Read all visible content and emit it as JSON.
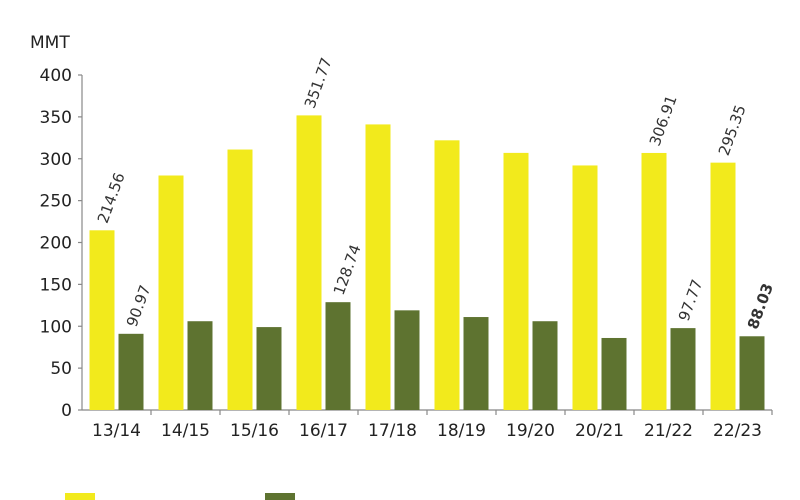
{
  "chart_data": {
    "type": "bar",
    "y_label": "MMT",
    "categories": [
      "13/14",
      "14/15",
      "15/16",
      "16/17",
      "17/18",
      "18/19",
      "19/20",
      "20/21",
      "21/22",
      "22/23"
    ],
    "series": [
      {
        "color": "#f2ea1c",
        "values": [
          214.56,
          280,
          311,
          351.77,
          341,
          322,
          307,
          292,
          306.91,
          295.35
        ],
        "value_labels": [
          "214.56",
          null,
          null,
          "351.77",
          null,
          null,
          null,
          null,
          "306.91",
          "295.35"
        ]
      },
      {
        "color": "#5e7330",
        "values": [
          90.97,
          106,
          99,
          128.74,
          119,
          111,
          106,
          86,
          97.77,
          88.03
        ],
        "value_labels": [
          "90.97",
          null,
          null,
          "128.74",
          null,
          null,
          null,
          null,
          "97.77",
          "88.03"
        ]
      }
    ],
    "ylim": [
      0,
      400
    ],
    "yticks": [
      0,
      50,
      100,
      150,
      200,
      250,
      300,
      350,
      400
    ]
  }
}
